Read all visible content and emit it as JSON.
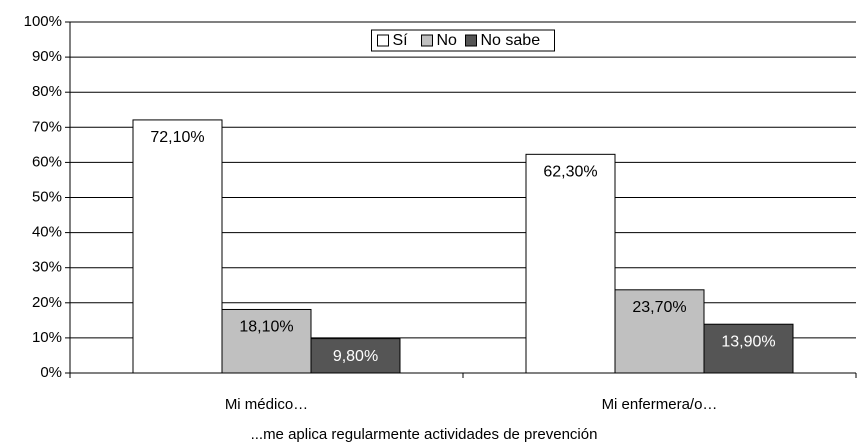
{
  "chart_data": {
    "type": "bar",
    "categories": [
      "Mi médico…",
      "Mi enfermera/o…"
    ],
    "x_label": "...me aplica regularmente actividades de prevención",
    "series": [
      {
        "name": "Sí",
        "color": "#ffffff",
        "values": [
          72.1,
          62.3
        ],
        "value_labels": [
          "72,10%",
          "62,30%"
        ]
      },
      {
        "name": "No",
        "color": "#c0c0c0",
        "values": [
          18.1,
          23.7
        ],
        "value_labels": [
          "18,10%",
          "23,70%"
        ]
      },
      {
        "name": "No sabe",
        "color": "#555555",
        "values": [
          9.8,
          13.9
        ],
        "value_labels": [
          "9,80%",
          "13,90%"
        ]
      }
    ],
    "ylim": [
      0,
      100
    ],
    "yticks": [
      {
        "value": 0,
        "label": "0%"
      },
      {
        "value": 10,
        "label": "10%"
      },
      {
        "value": 20,
        "label": "20%"
      },
      {
        "value": 30,
        "label": "30%"
      },
      {
        "value": 40,
        "label": "40%"
      },
      {
        "value": 50,
        "label": "50%"
      },
      {
        "value": 60,
        "label": "60%"
      },
      {
        "value": 70,
        "label": "70%"
      },
      {
        "value": 80,
        "label": "80%"
      },
      {
        "value": 90,
        "label": "90%"
      },
      {
        "value": 100,
        "label": "100%"
      }
    ],
    "grid": true,
    "legend": "top"
  }
}
